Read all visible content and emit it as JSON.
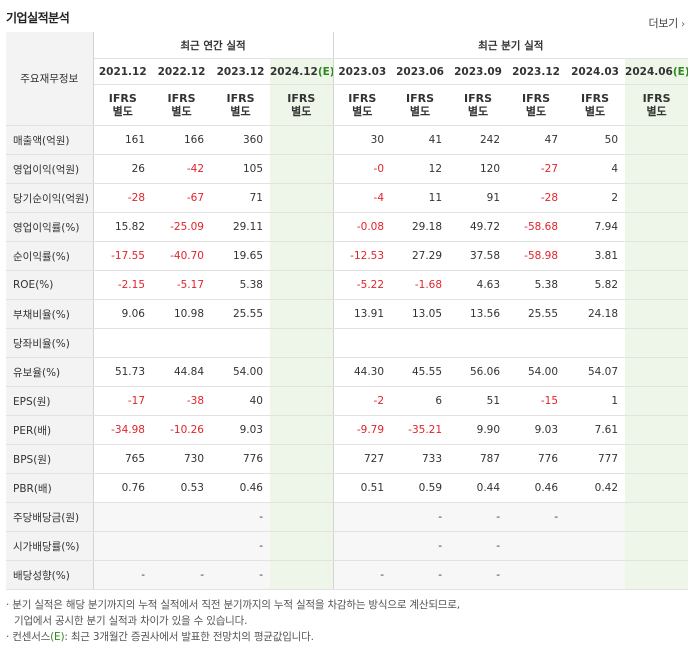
{
  "title": "기업실적분석",
  "more_label": "더보기",
  "header": {
    "key_label": "주요재무정보",
    "annual_group": "최근 연간 실적",
    "quarter_group": "최근 분기 실적",
    "ifrs_label": "IFRS",
    "ifrs_sub": "별도",
    "periods": [
      "2021.12",
      "2022.12",
      "2023.12",
      "2024.12",
      "2023.03",
      "2023.06",
      "2023.09",
      "2023.12",
      "2024.03",
      "2024.06"
    ],
    "estimate_mark": "(E)"
  },
  "rows": [
    {
      "label": "매출액(억원)",
      "values": [
        "161",
        "166",
        "360",
        "",
        "30",
        "41",
        "242",
        "47",
        "50",
        ""
      ]
    },
    {
      "label": "영업이익(억원)",
      "values": [
        "26",
        "-42",
        "105",
        "",
        "-0",
        "12",
        "120",
        "-27",
        "4",
        ""
      ]
    },
    {
      "label": "당기순이익(억원)",
      "values": [
        "-28",
        "-67",
        "71",
        "",
        "-4",
        "11",
        "91",
        "-28",
        "2",
        ""
      ]
    },
    {
      "label": "영업이익률(%)",
      "values": [
        "15.82",
        "-25.09",
        "29.11",
        "",
        "-0.08",
        "29.18",
        "49.72",
        "-58.68",
        "7.94",
        ""
      ]
    },
    {
      "label": "순이익률(%)",
      "values": [
        "-17.55",
        "-40.70",
        "19.65",
        "",
        "-12.53",
        "27.29",
        "37.58",
        "-58.98",
        "3.81",
        ""
      ]
    },
    {
      "label": "ROE(%)",
      "values": [
        "-2.15",
        "-5.17",
        "5.38",
        "",
        "-5.22",
        "-1.68",
        "4.63",
        "5.38",
        "5.82",
        ""
      ]
    },
    {
      "label": "부채비율(%)",
      "values": [
        "9.06",
        "10.98",
        "25.55",
        "",
        "13.91",
        "13.05",
        "13.56",
        "25.55",
        "24.18",
        ""
      ]
    },
    {
      "label": "당좌비율(%)",
      "values": [
        "",
        "",
        "",
        "",
        "",
        "",
        "",
        "",
        "",
        ""
      ]
    },
    {
      "label": "유보율(%)",
      "values": [
        "51.73",
        "44.84",
        "54.00",
        "",
        "44.30",
        "45.55",
        "56.06",
        "54.00",
        "54.07",
        ""
      ]
    },
    {
      "label": "EPS(원)",
      "values": [
        "-17",
        "-38",
        "40",
        "",
        "-2",
        "6",
        "51",
        "-15",
        "1",
        ""
      ]
    },
    {
      "label": "PER(배)",
      "values": [
        "-34.98",
        "-10.26",
        "9.03",
        "",
        "-9.79",
        "-35.21",
        "9.90",
        "9.03",
        "7.61",
        ""
      ]
    },
    {
      "label": "BPS(원)",
      "values": [
        "765",
        "730",
        "776",
        "",
        "727",
        "733",
        "787",
        "776",
        "777",
        ""
      ]
    },
    {
      "label": "PBR(배)",
      "values": [
        "0.76",
        "0.53",
        "0.46",
        "",
        "0.51",
        "0.59",
        "0.44",
        "0.46",
        "0.42",
        ""
      ]
    },
    {
      "label": "주당배당금(원)",
      "values": [
        "",
        "",
        "-",
        "",
        "",
        "-",
        "-",
        "-",
        "",
        ""
      ]
    },
    {
      "label": "시가배당률(%)",
      "values": [
        "",
        "",
        "-",
        "",
        "",
        "-",
        "-",
        "",
        "",
        ""
      ]
    },
    {
      "label": "배당성향(%)",
      "values": [
        "-",
        "-",
        "-",
        "",
        "-",
        "-",
        "-",
        "",
        "",
        ""
      ]
    }
  ],
  "notes": {
    "line1": "분기 실적은 해당 분기까지의 누적 실적에서 직전 분기까지의 누적 실적을 차감하는 방식으로 계산되므로,",
    "line2": "기업에서 공시한 분기 실적과 차이가 있을 수 있습니다.",
    "line3_prefix": "컨센서스",
    "line3_mark": "(E)",
    "line3_suffix": ": 최근 3개월간 증권사에서 발표한 전망치의 평균값입니다."
  },
  "colors": {
    "negative": "#e0242b",
    "ifrs": "#e8510a",
    "estimate_bg": "#eef6ea",
    "estimate_text": "#2f8a1e"
  }
}
